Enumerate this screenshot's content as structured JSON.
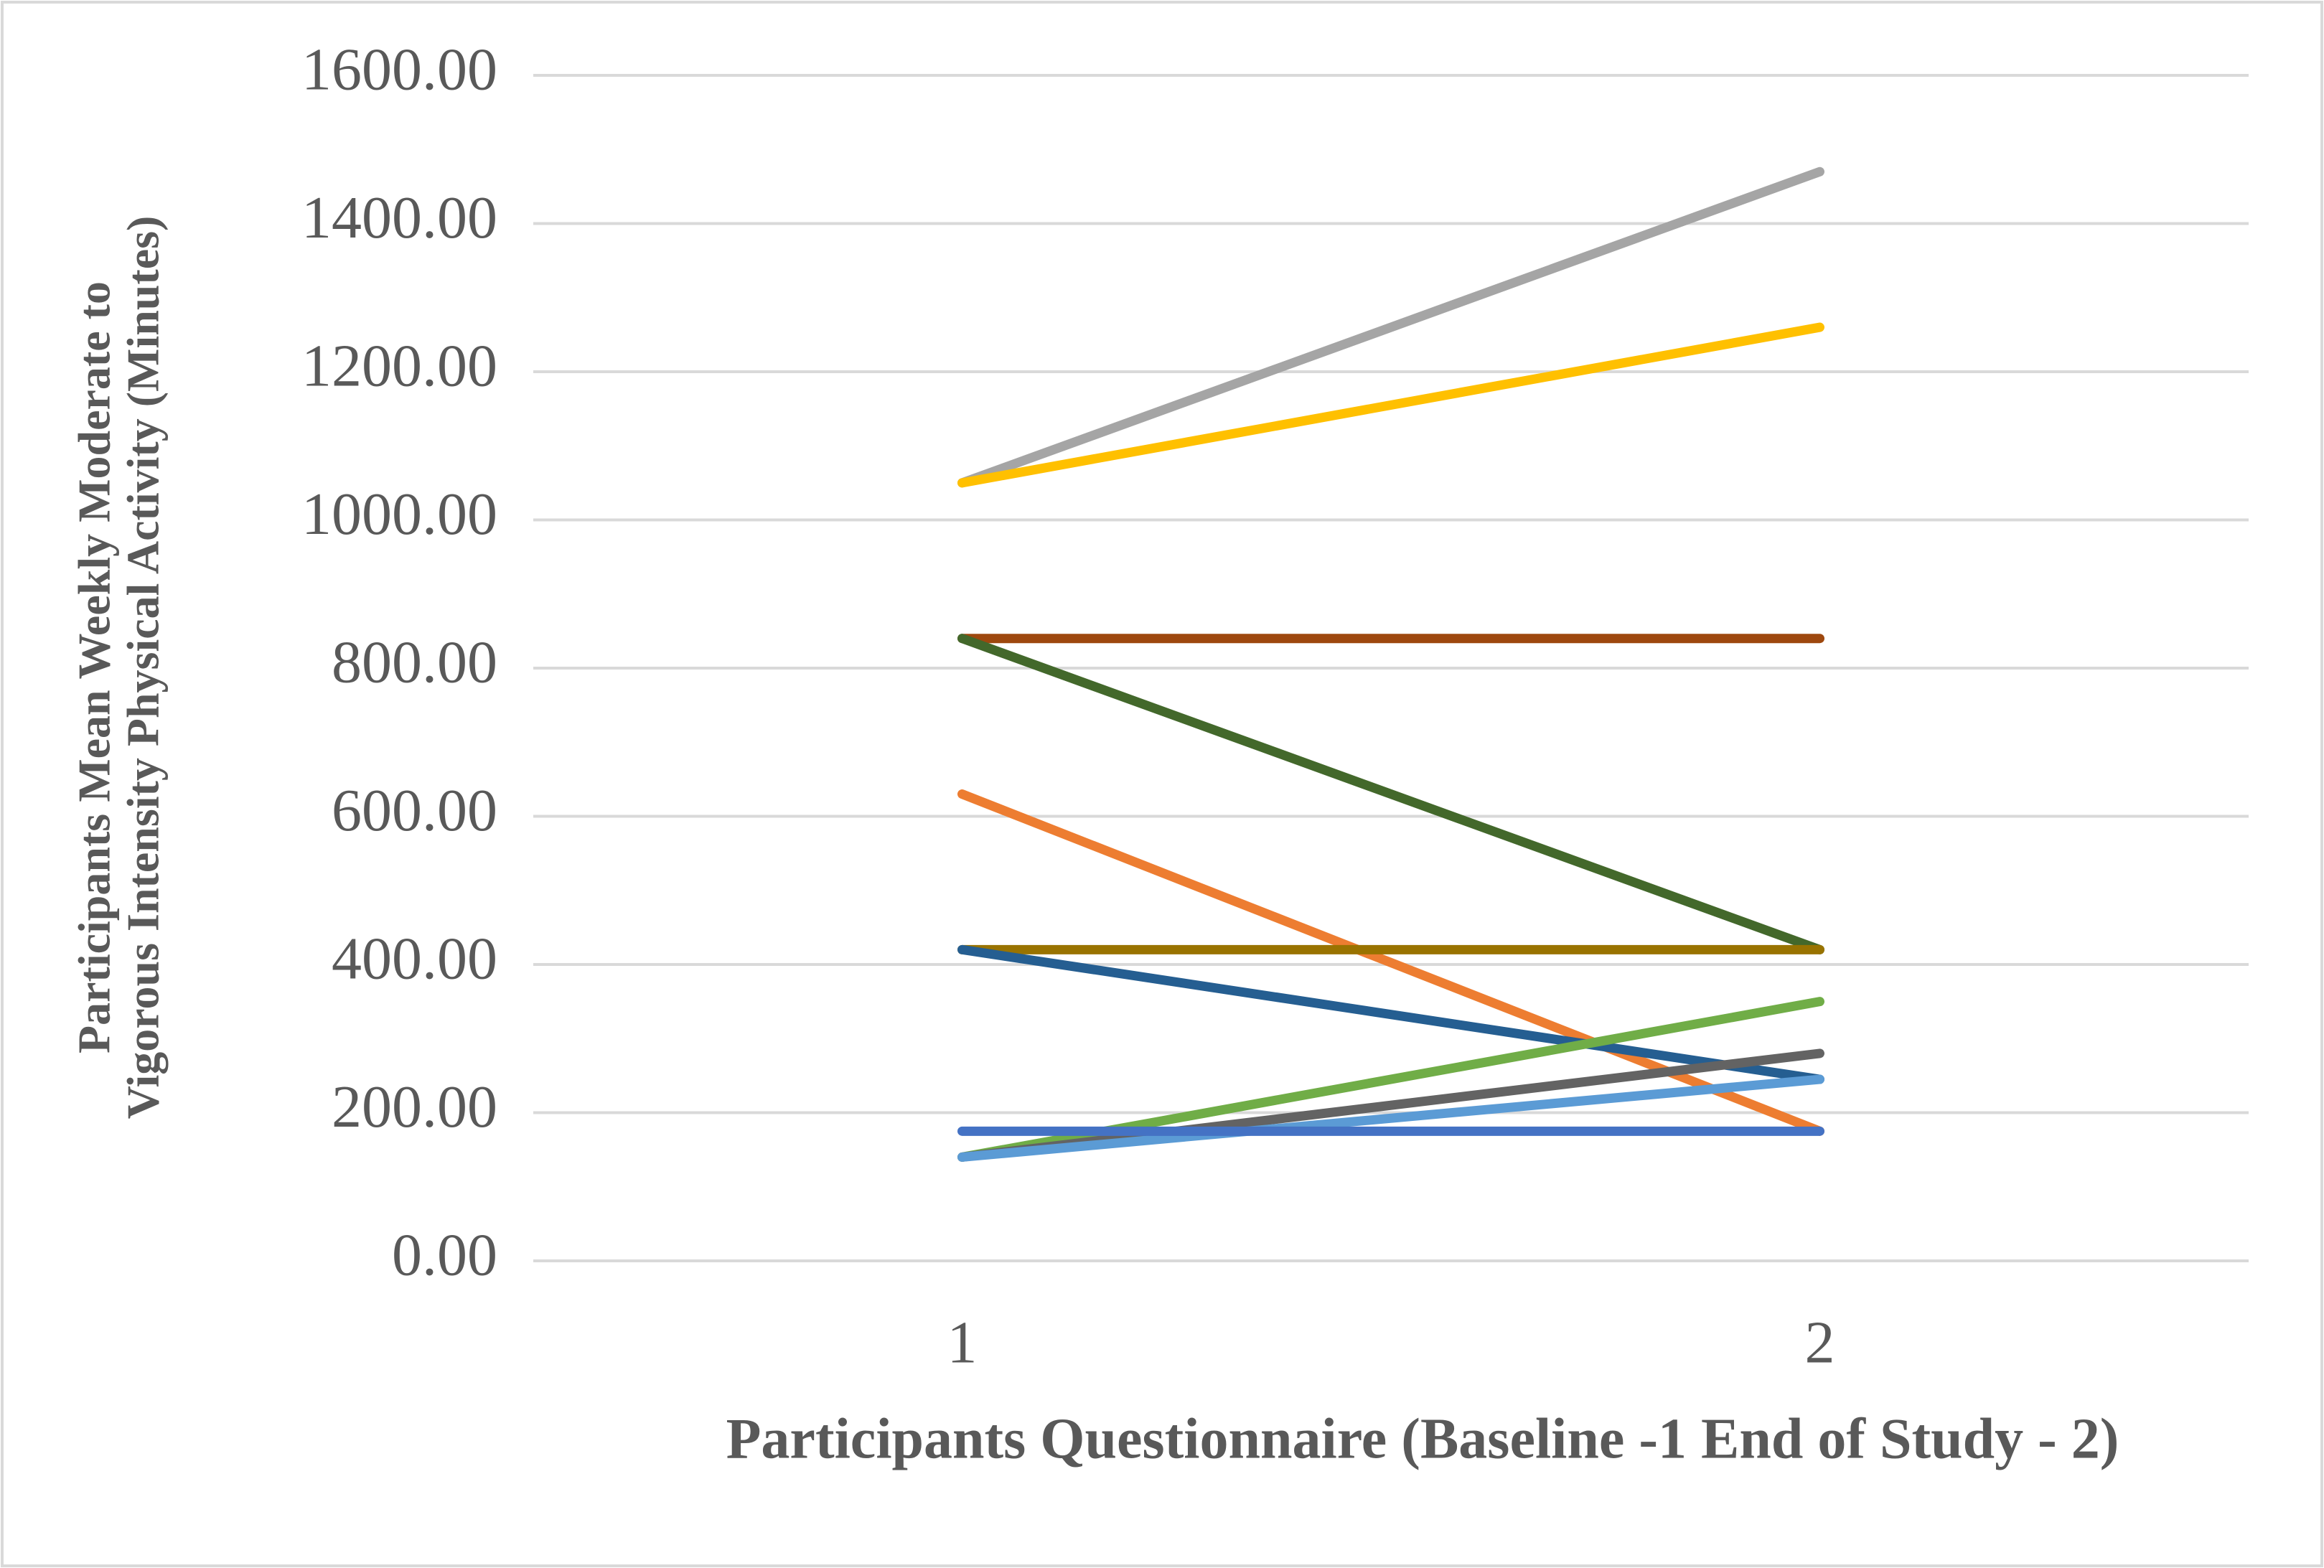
{
  "chart_data": {
    "type": "line",
    "xlabel": "Participants Questionnaire (Baseline -1 End of Study - 2)",
    "ylabel": [
      "Participants Mean Weekly Moderate to",
      "Vigorous Intensity Physical Activity (Minutes)"
    ],
    "categories": [
      "1",
      "2"
    ],
    "series": [
      {
        "color": "#a5a5a5",
        "values": [
          1050,
          1470
        ]
      },
      {
        "color": "#ffc000",
        "values": [
          1050,
          1260
        ]
      },
      {
        "color": "#9e480e",
        "values": [
          840,
          840
        ]
      },
      {
        "color": "#43682b",
        "values": [
          840,
          420
        ]
      },
      {
        "color": "#ed7d31",
        "values": [
          630,
          175
        ]
      },
      {
        "color": "#997300",
        "values": [
          420,
          420
        ]
      },
      {
        "color": "#255e91",
        "values": [
          420,
          245
        ]
      },
      {
        "color": "#70ad47",
        "values": [
          140,
          350
        ]
      },
      {
        "color": "#636363",
        "values": [
          140,
          280
        ]
      },
      {
        "color": "#5b9bd5",
        "values": [
          140,
          245
        ]
      },
      {
        "color": "#4472c4",
        "values": [
          175,
          175
        ]
      }
    ],
    "ylim": [
      0,
      1600
    ],
    "yticks": [
      {
        "value": 0,
        "label": "0.00"
      },
      {
        "value": 200,
        "label": "200.00"
      },
      {
        "value": 400,
        "label": "400.00"
      },
      {
        "value": 600,
        "label": "600.00"
      },
      {
        "value": 800,
        "label": "800.00"
      },
      {
        "value": 1000,
        "label": "1000.00"
      },
      {
        "value": 1200,
        "label": "1200.00"
      },
      {
        "value": 1400,
        "label": "1400.00"
      },
      {
        "value": 1600,
        "label": "1600.00"
      }
    ],
    "grid": true
  }
}
